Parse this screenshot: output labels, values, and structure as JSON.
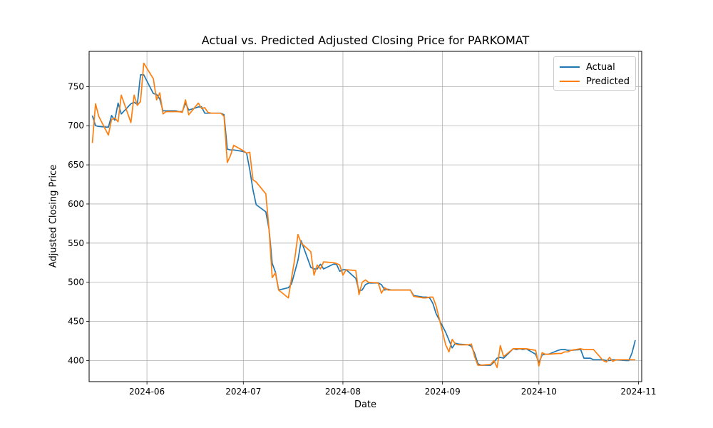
{
  "chart_data": {
    "type": "line",
    "title": "Actual vs. Predicted Adjusted Closing Price for PARKOMAT",
    "xlabel": "Date",
    "ylabel": "Adjusted Closing Price",
    "x_axis_type": "date",
    "xlim": [
      "2024-05-14",
      "2024-11-02"
    ],
    "ylim": [
      373,
      795
    ],
    "x_ticks": [
      "2024-06-01",
      "2024-07-01",
      "2024-08-01",
      "2024-09-01",
      "2024-10-01",
      "2024-11-01"
    ],
    "x_tick_labels": [
      "2024-06",
      "2024-07",
      "2024-08",
      "2024-09",
      "2024-10",
      "2024-11"
    ],
    "y_ticks": [
      400,
      450,
      500,
      550,
      600,
      650,
      700,
      750
    ],
    "grid": true,
    "legend_position": "top-right",
    "x": [
      "2024-05-15",
      "2024-05-16",
      "2024-05-17",
      "2024-05-20",
      "2024-05-21",
      "2024-05-22",
      "2024-05-23",
      "2024-05-24",
      "2024-05-27",
      "2024-05-28",
      "2024-05-29",
      "2024-05-30",
      "2024-05-31",
      "2024-06-03",
      "2024-06-04",
      "2024-06-05",
      "2024-06-06",
      "2024-06-07",
      "2024-06-10",
      "2024-06-11",
      "2024-06-12",
      "2024-06-13",
      "2024-06-14",
      "2024-06-17",
      "2024-06-18",
      "2024-06-19",
      "2024-06-20",
      "2024-06-21",
      "2024-06-24",
      "2024-06-25",
      "2024-06-26",
      "2024-06-27",
      "2024-06-28",
      "2024-07-01",
      "2024-07-02",
      "2024-07-03",
      "2024-07-04",
      "2024-07-05",
      "2024-07-08",
      "2024-07-09",
      "2024-07-10",
      "2024-07-11",
      "2024-07-12",
      "2024-07-15",
      "2024-07-16",
      "2024-07-17",
      "2024-07-18",
      "2024-07-19",
      "2024-07-22",
      "2024-07-23",
      "2024-07-24",
      "2024-07-25",
      "2024-07-26",
      "2024-07-29",
      "2024-07-30",
      "2024-07-31",
      "2024-08-01",
      "2024-08-02",
      "2024-08-05",
      "2024-08-06",
      "2024-08-07",
      "2024-08-08",
      "2024-08-09",
      "2024-08-12",
      "2024-08-13",
      "2024-08-14",
      "2024-08-15",
      "2024-08-16",
      "2024-08-19",
      "2024-08-20",
      "2024-08-21",
      "2024-08-22",
      "2024-08-23",
      "2024-08-26",
      "2024-08-27",
      "2024-08-28",
      "2024-08-29",
      "2024-08-30",
      "2024-09-02",
      "2024-09-03",
      "2024-09-04",
      "2024-09-05",
      "2024-09-06",
      "2024-09-09",
      "2024-09-10",
      "2024-09-11",
      "2024-09-12",
      "2024-09-13",
      "2024-09-16",
      "2024-09-17",
      "2024-09-18",
      "2024-09-19",
      "2024-09-20",
      "2024-09-23",
      "2024-09-24",
      "2024-09-25",
      "2024-09-26",
      "2024-09-27",
      "2024-09-30",
      "2024-10-01",
      "2024-10-02",
      "2024-10-03",
      "2024-10-04",
      "2024-10-07",
      "2024-10-08",
      "2024-10-09",
      "2024-10-10",
      "2024-10-11",
      "2024-10-14",
      "2024-10-15",
      "2024-10-16",
      "2024-10-17",
      "2024-10-18",
      "2024-10-21",
      "2024-10-22",
      "2024-10-23",
      "2024-10-24",
      "2024-10-25",
      "2024-10-28",
      "2024-10-29",
      "2024-10-30",
      "2024-10-31"
    ],
    "series": [
      {
        "name": "Actual",
        "color": "#1f77b4",
        "values": [
          713,
          700,
          699,
          698,
          713,
          707,
          729,
          715,
          728,
          730,
          727,
          765,
          765,
          741,
          740,
          734,
          719,
          719,
          719,
          718,
          718,
          729,
          720,
          724,
          724,
          716,
          716,
          716,
          716,
          714,
          670,
          669,
          669,
          667,
          665,
          644,
          618,
          599,
          590,
          568,
          524,
          513,
          490,
          493,
          498,
          513,
          528,
          553,
          519,
          517,
          517,
          523,
          517,
          523,
          523,
          514,
          516,
          516,
          505,
          489,
          490,
          497,
          499,
          499,
          497,
          490,
          491,
          490,
          490,
          490,
          490,
          490,
          483,
          481,
          481,
          480,
          473,
          460,
          436,
          426,
          416,
          422,
          421,
          420,
          418,
          409,
          396,
          394,
          394,
          398,
          403,
          404,
          403,
          415,
          414,
          415,
          414,
          415,
          408,
          397,
          407,
          408,
          408,
          413,
          414,
          414,
          413,
          413,
          414,
          403,
          403,
          403,
          401,
          401,
          400,
          400,
          401,
          401,
          400,
          400,
          410,
          426
        ]
      },
      {
        "name": "Predicted",
        "color": "#ff7f0e",
        "values": [
          678,
          728,
          712,
          688,
          708,
          710,
          705,
          739,
          704,
          739,
          726,
          731,
          780,
          760,
          733,
          742,
          715,
          718,
          718,
          718,
          717,
          733,
          714,
          729,
          722,
          723,
          717,
          716,
          716,
          712,
          653,
          662,
          675,
          668,
          665,
          666,
          631,
          628,
          613,
          568,
          506,
          512,
          490,
          480,
          505,
          530,
          561,
          550,
          539,
          509,
          522,
          517,
          526,
          525,
          524,
          522,
          509,
          516,
          515,
          484,
          500,
          503,
          500,
          499,
          486,
          493,
          490,
          490,
          490,
          490,
          490,
          490,
          482,
          480,
          480,
          481,
          481,
          470,
          420,
          411,
          427,
          421,
          420,
          420,
          421,
          405,
          394,
          394,
          395,
          400,
          391,
          419,
          405,
          415,
          415,
          415,
          415,
          415,
          413,
          393,
          410,
          408,
          408,
          409,
          409,
          411,
          411,
          413,
          415,
          414,
          414,
          414,
          414,
          400,
          398,
          404,
          399,
          401,
          401,
          401,
          401,
          401
        ]
      }
    ]
  }
}
